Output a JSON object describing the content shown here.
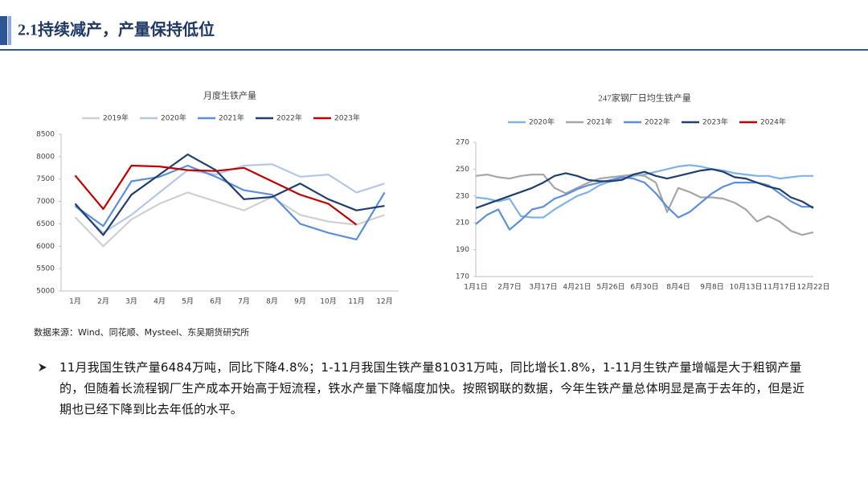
{
  "header": {
    "title": "2.1持续减产，产量保持低位"
  },
  "chart_data": [
    {
      "type": "line",
      "title": "月度生铁产量",
      "categories": [
        "1月",
        "2月",
        "3月",
        "4月",
        "5月",
        "6月",
        "7月",
        "8月",
        "9月",
        "10月",
        "11月",
        "12月"
      ],
      "series": [
        {
          "name": "2019年",
          "color": "#d0d0d0",
          "values": [
            6650,
            6000,
            6600,
            6950,
            7200,
            7000,
            6800,
            7100,
            6700,
            6550,
            6480,
            6700
          ]
        },
        {
          "name": "2020年",
          "color": "#b4c7e7",
          "values": [
            6900,
            6300,
            6700,
            7200,
            7700,
            7600,
            7800,
            7830,
            7550,
            7600,
            7200,
            7400
          ]
        },
        {
          "name": "2021年",
          "color": "#5b8fd9",
          "values": [
            6900,
            6450,
            7450,
            7550,
            7800,
            7550,
            7250,
            7150,
            6500,
            6300,
            6150,
            7200
          ]
        },
        {
          "name": "2022年",
          "color": "#1f3f6e",
          "values": [
            6950,
            6250,
            7150,
            7600,
            8050,
            7700,
            7050,
            7100,
            7400,
            7050,
            6800,
            6900
          ]
        },
        {
          "name": "2023年",
          "color": "#c00000",
          "values": [
            7580,
            6830,
            7800,
            7780,
            7700,
            7680,
            7750,
            7450,
            7150,
            6950,
            6480,
            null
          ]
        }
      ],
      "ylim": [
        5000,
        8500
      ],
      "yticks": [
        5000,
        5500,
        6000,
        6500,
        7000,
        7500,
        8000,
        8500
      ],
      "grid": false
    },
    {
      "type": "line",
      "title": "247家钢厂日均生铁产量",
      "categories": [
        "1月1日",
        null,
        null,
        "2月7日",
        null,
        null,
        "3月17日",
        null,
        null,
        "4月21日",
        null,
        null,
        "5月26日",
        null,
        null,
        "6月30日",
        null,
        null,
        "8月4日",
        null,
        null,
        "9月8日",
        null,
        null,
        "10月13日",
        null,
        null,
        "11月17日",
        null,
        null,
        "12月22日"
      ],
      "series": [
        {
          "name": "2020年",
          "color": "#7fb2e5",
          "values": [
            229,
            228,
            226,
            228,
            215,
            214,
            214,
            220,
            225,
            230,
            233,
            238,
            241,
            243,
            245,
            246,
            248,
            250,
            252,
            253,
            252,
            250,
            249,
            247,
            246,
            245,
            245,
            243,
            244,
            245,
            245
          ]
        },
        {
          "name": "2021年",
          "color": "#a6a6a6",
          "values": [
            245,
            246,
            244,
            243,
            245,
            246,
            246,
            236,
            232,
            236,
            240,
            243,
            244,
            245,
            246,
            245,
            240,
            218,
            236,
            233,
            229,
            229,
            228,
            225,
            220,
            211,
            215,
            211,
            204,
            201,
            203
          ]
        },
        {
          "name": "2022年",
          "color": "#5b8fd9",
          "values": [
            209,
            216,
            220,
            205,
            212,
            220,
            222,
            228,
            231,
            235,
            238,
            240,
            242,
            244,
            243,
            240,
            232,
            222,
            214,
            218,
            225,
            232,
            237,
            240,
            240,
            240,
            238,
            232,
            226,
            222,
            222
          ]
        },
        {
          "name": "2023年",
          "color": "#1f3f6e",
          "values": [
            221,
            224,
            227,
            230,
            233,
            236,
            240,
            245,
            247,
            245,
            242,
            241,
            241,
            242,
            246,
            248,
            245,
            243,
            245,
            247,
            249,
            250,
            248,
            244,
            243,
            240,
            237,
            235,
            229,
            226,
            221
          ]
        },
        {
          "name": "2024年",
          "color": "#c00000",
          "values": [
            null,
            null,
            null,
            null,
            null,
            null,
            null,
            null,
            null,
            null,
            null,
            null,
            null,
            null,
            null,
            null,
            null,
            null,
            null,
            null,
            null,
            null,
            null,
            null,
            null,
            null,
            null,
            null,
            null,
            null,
            null
          ]
        }
      ],
      "ylim": [
        170,
        270
      ],
      "yticks": [
        170,
        190,
        210,
        230,
        250,
        270
      ],
      "grid": false
    }
  ],
  "source": "数据来源：Wind、同花顺、Mysteel、东吴期货研究所",
  "bullets": [
    "11月我国生铁产量6484万吨，同比下降4.8%；1-11月我国生铁产量81031万吨，同比增长1.8%，1-11月生铁产量增幅是大于粗钢产量的，但随着长流程钢厂生产成本开始高于短流程，铁水产量下降幅度加快。按照钢联的数据，今年生铁产量总体明显是高于去年的，但是近期也已经下降到比去年低的水平。"
  ]
}
